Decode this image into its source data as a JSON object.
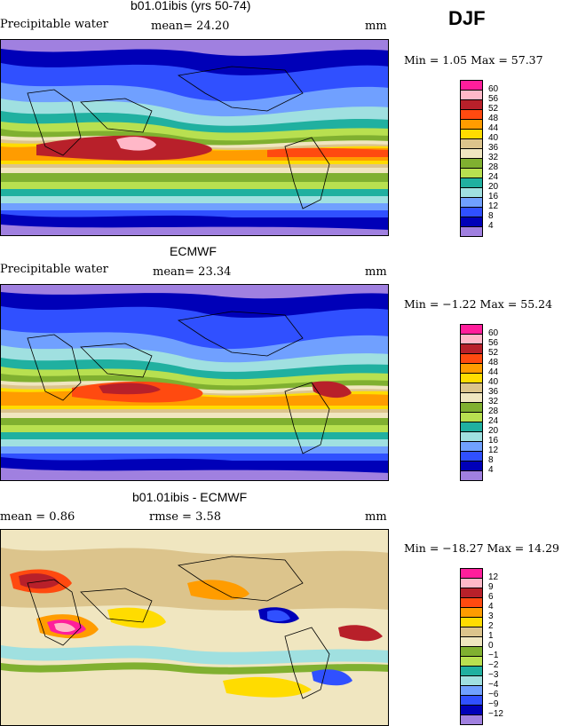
{
  "season": "DJF",
  "panels": [
    {
      "title": "b01.01ibis (yrs 50-74)",
      "left_label": "Precipitable water",
      "mid_label": "mean=  24.20",
      "unit": "mm",
      "min_max": "Min =    1.05  Max =  57.37",
      "legend_labels": [
        "60",
        "56",
        "52",
        "48",
        "44",
        "40",
        "36",
        "32",
        "28",
        "24",
        "20",
        "16",
        "12",
        "8",
        "4"
      ],
      "legend_colors": [
        "#ff1e9b",
        "#ffb8c8",
        "#b8202a",
        "#ff4a10",
        "#ff9c00",
        "#ffdc00",
        "#dcc48c",
        "#f0e6c0",
        "#80b030",
        "#b8e050",
        "#20b0a0",
        "#a0e0e0",
        "#70a0ff",
        "#3050ff",
        "#0000b8",
        "#a080e0"
      ]
    },
    {
      "title": "ECMWF",
      "left_label": "Precipitable water",
      "mid_label": "mean=  23.34",
      "unit": "mm",
      "min_max": "Min =  −1.22  Max =   55.24",
      "legend_labels": [
        "60",
        "56",
        "52",
        "48",
        "44",
        "40",
        "36",
        "32",
        "28",
        "24",
        "20",
        "16",
        "12",
        "8",
        "4"
      ],
      "legend_colors": [
        "#ff1e9b",
        "#ffb8c8",
        "#b8202a",
        "#ff4a10",
        "#ff9c00",
        "#ffdc00",
        "#dcc48c",
        "#f0e6c0",
        "#80b030",
        "#b8e050",
        "#20b0a0",
        "#a0e0e0",
        "#70a0ff",
        "#3050ff",
        "#0000b8",
        "#a080e0"
      ]
    },
    {
      "title": "b01.01ibis - ECMWF",
      "left_label": "mean =    0.86",
      "mid_label": "rmse =    3.58",
      "unit": "mm",
      "min_max": "Min = −18.27  Max =   14.29",
      "legend_labels": [
        "12",
        "9",
        "6",
        "4",
        "3",
        "2",
        "1",
        "0",
        "−1",
        "−2",
        "−3",
        "−4",
        "−6",
        "−9",
        "−12"
      ],
      "legend_colors": [
        "#ff1e9b",
        "#ffb8c8",
        "#b8202a",
        "#ff4a10",
        "#ff9c00",
        "#ffdc00",
        "#dcc48c",
        "#f0e6c0",
        "#80b030",
        "#b8e050",
        "#20b0a0",
        "#a0e0e0",
        "#70a0ff",
        "#3050ff",
        "#0000b8",
        "#a080e0"
      ]
    }
  ]
}
